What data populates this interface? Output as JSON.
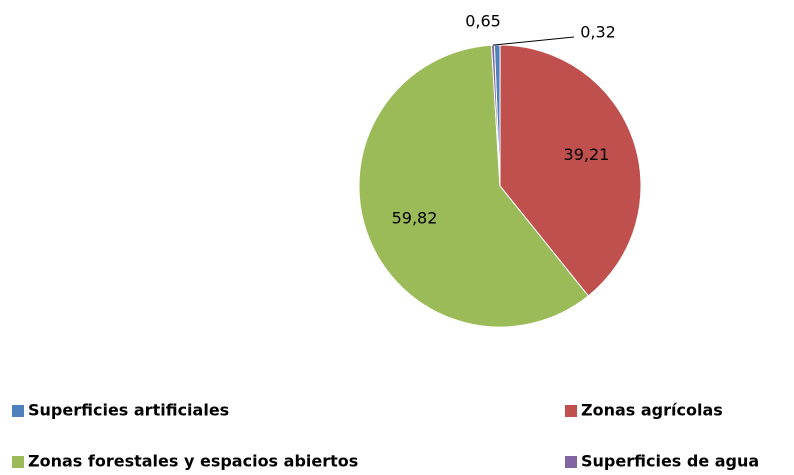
{
  "chart_data": {
    "type": "pie",
    "categories": [
      "Superficies artificiales",
      "Zonas agrícolas",
      "Zonas forestales y espacios abiertos",
      "Superficies de agua"
    ],
    "values": [
      0.65,
      39.21,
      59.82,
      0.32
    ],
    "value_labels": [
      "0,65",
      "39,21",
      "59,82",
      "0,32"
    ],
    "colors": [
      "#4f81bd",
      "#c0504d",
      "#9bbb59",
      "#8064a2"
    ],
    "legend": "bottom"
  }
}
